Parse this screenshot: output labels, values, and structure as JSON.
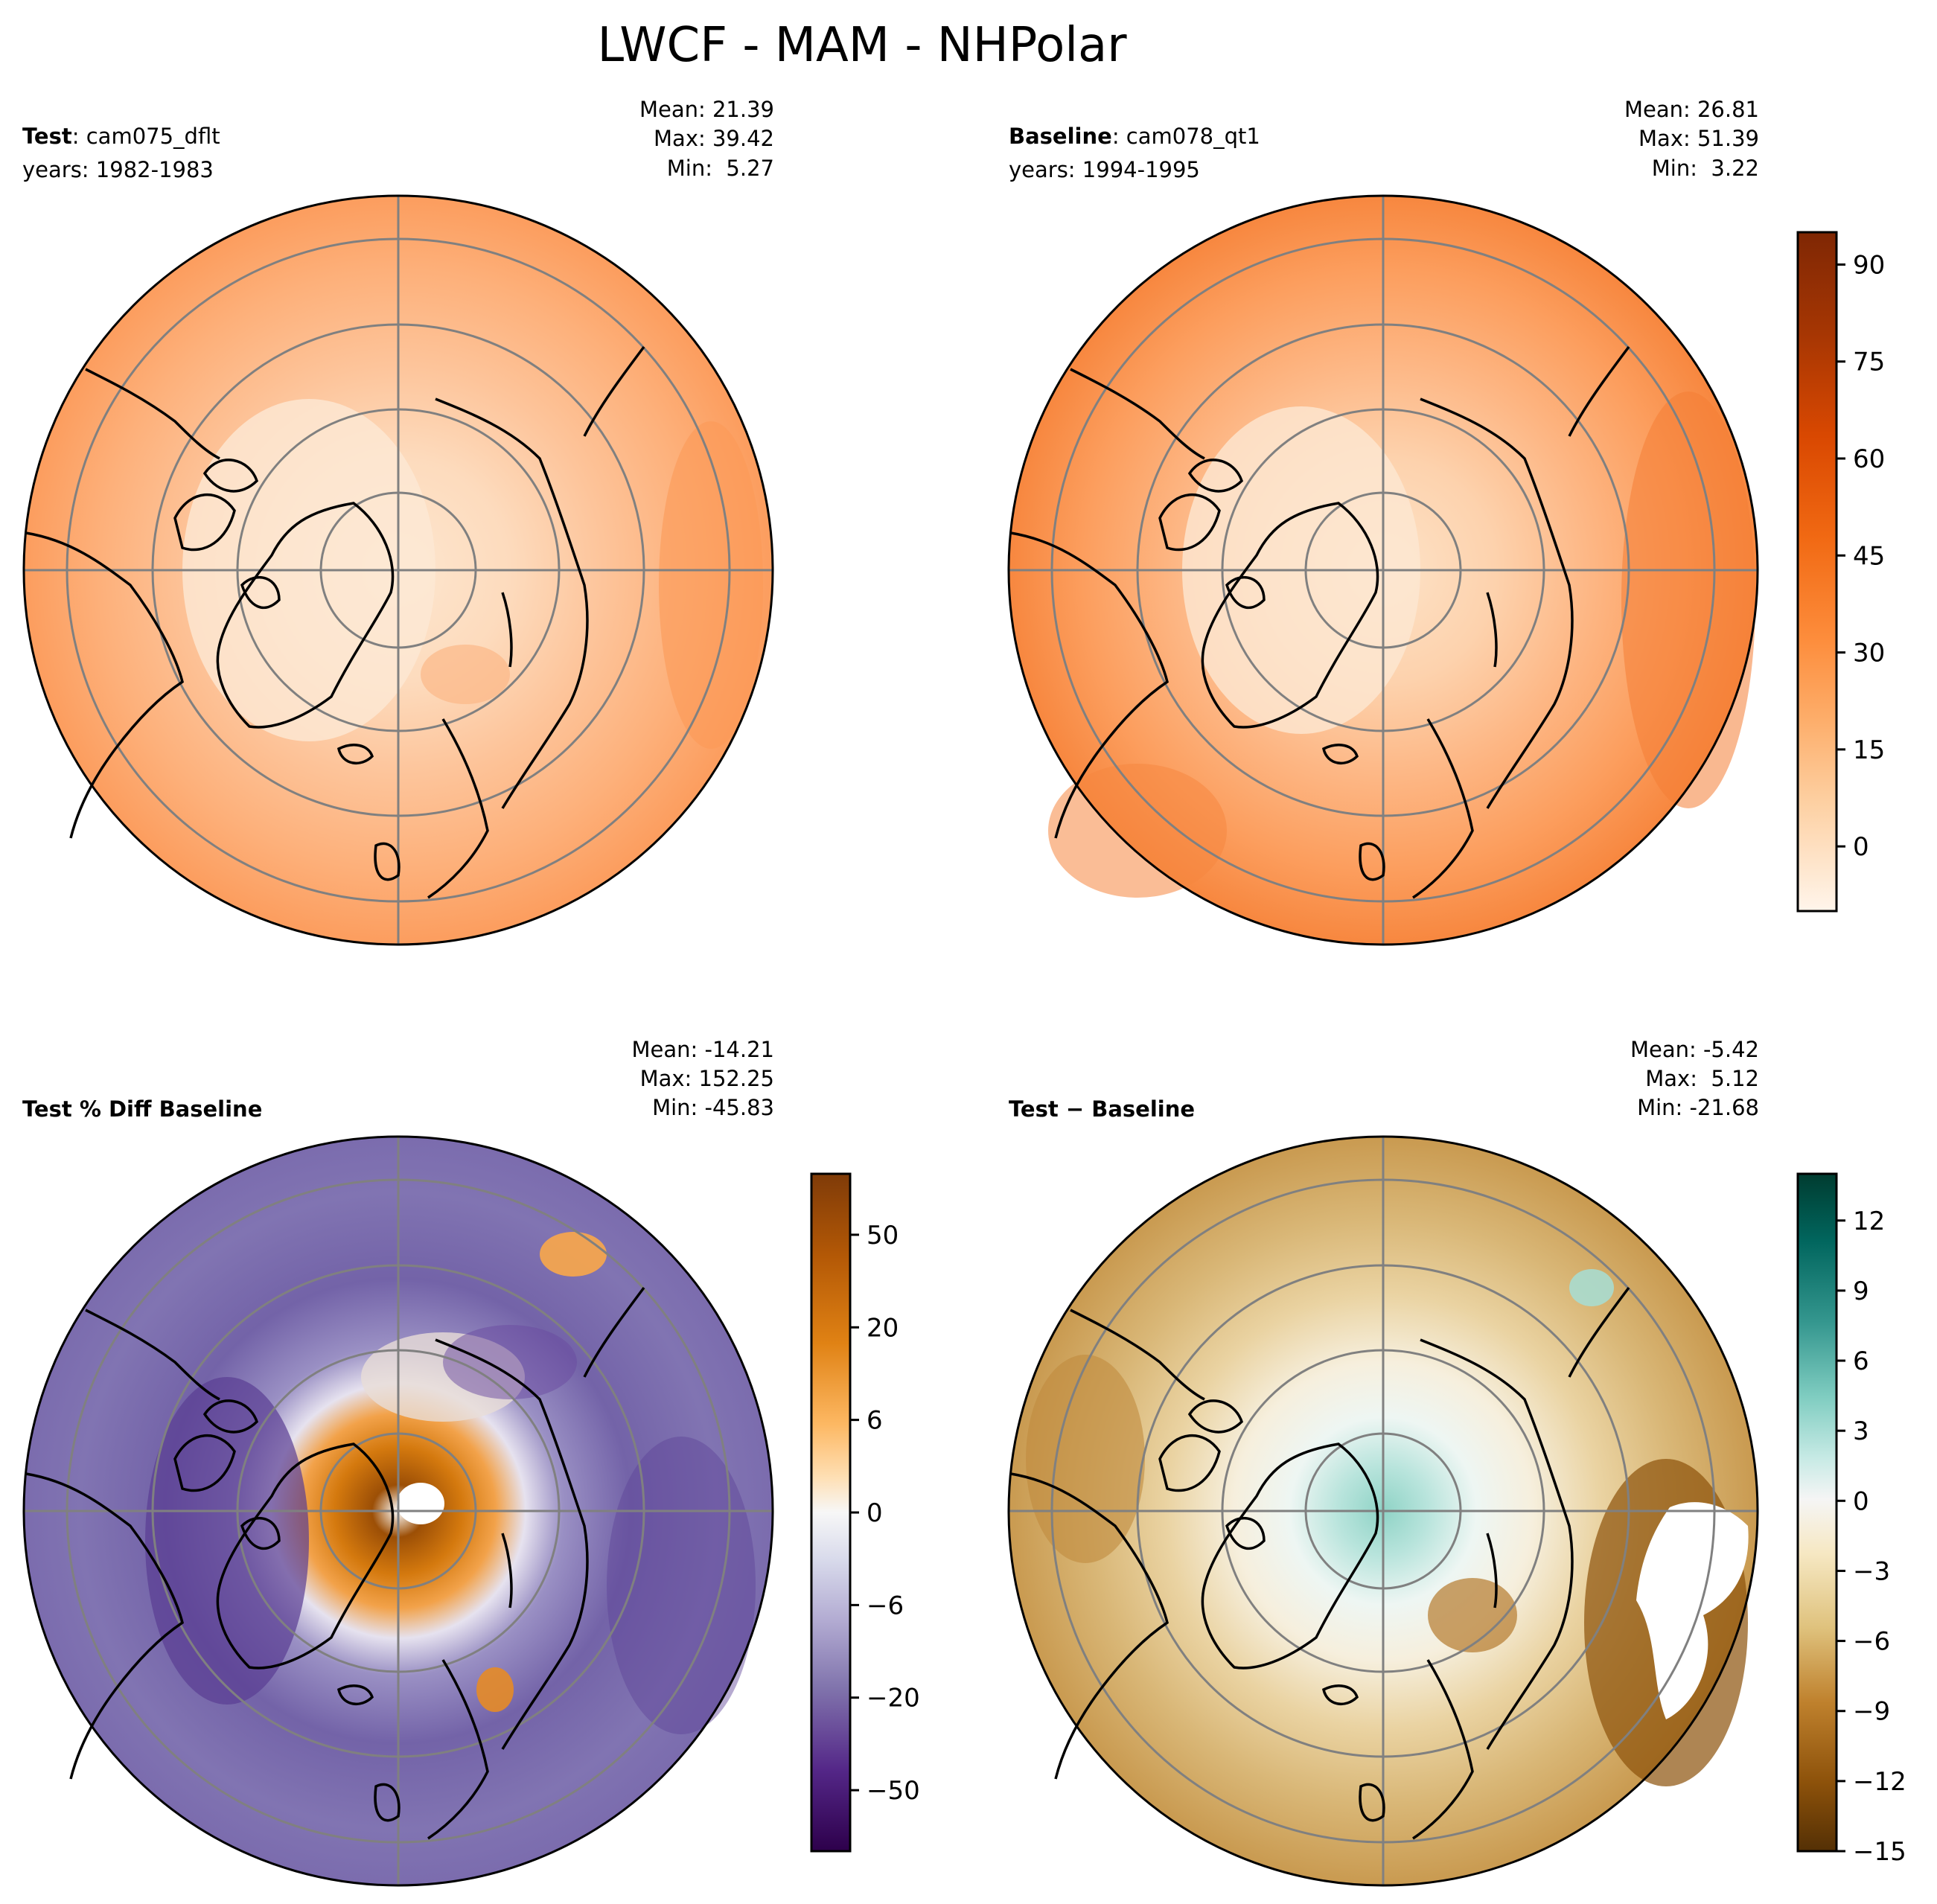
{
  "figure": {
    "title": "LWCF - MAM - NHPolar"
  },
  "panels": [
    {
      "id": "test",
      "label_bold": "Test",
      "label_rest": ": cam075_dflt",
      "years": "years: 1982-1983",
      "stats": {
        "mean": "Mean: 21.39",
        "max": "Max: 39.42",
        "min": "Min:  5.27"
      },
      "style": "orange-test",
      "has_colorbar": false
    },
    {
      "id": "baseline",
      "label_bold": "Baseline",
      "label_rest": ": cam078_qt1",
      "years": "years: 1994-1995",
      "stats": {
        "mean": "Mean: 26.81",
        "max": "Max: 51.39",
        "min": "Min:  3.22"
      },
      "style": "orange-base",
      "has_colorbar": true
    },
    {
      "id": "pctdiff",
      "label_bold": "Test % Diff Baseline",
      "label_rest": "",
      "years": "",
      "stats": {
        "mean": "Mean: -14.21",
        "max": "Max: 152.25",
        "min": "Min: -45.83"
      },
      "style": "purple-orange",
      "has_colorbar": true
    },
    {
      "id": "diff",
      "label_bold": "Test − Baseline",
      "label_rest": "",
      "years": "",
      "stats": {
        "mean": "Mean: -5.42",
        "max": "Max:  5.12",
        "min": "Min: -21.68"
      },
      "style": "brown-teal",
      "has_colorbar": true
    }
  ],
  "chart_data": [
    {
      "type": "heatmap",
      "title": "Test: cam075_dflt",
      "projection": "north polar stereographic",
      "mean": 21.39,
      "max": 39.42,
      "min": 5.27,
      "colorbar": null
    },
    {
      "type": "heatmap",
      "title": "Baseline: cam078_qt1",
      "projection": "north polar stereographic",
      "mean": 26.81,
      "max": 51.39,
      "min": 3.22,
      "colorbar": {
        "ticks": [
          "0",
          "15",
          "30",
          "45",
          "60",
          "75",
          "90"
        ],
        "tick_values": [
          0,
          15,
          30,
          45,
          60,
          75,
          90
        ],
        "range": [
          -10,
          95
        ],
        "colors": [
          "#fff5eb",
          "#fdd0a2",
          "#fdae6b",
          "#fd8d3c",
          "#f16913",
          "#d94801",
          "#8c2d04",
          "#7f2704"
        ]
      }
    },
    {
      "type": "heatmap",
      "title": "Test % Diff Baseline",
      "projection": "north polar stereographic",
      "mean": -14.21,
      "max": 152.25,
      "min": -45.83,
      "colorbar": {
        "ticks": [
          "50",
          "20",
          "6",
          "0",
          "−6",
          "−20",
          "−50"
        ],
        "tick_values": [
          50,
          20,
          6,
          0,
          -6,
          -20,
          -50
        ],
        "colors": [
          "#7f3b08",
          "#b35806",
          "#e08214",
          "#fdb863",
          "#fee0b6",
          "#f7f7f7",
          "#d8daeb",
          "#b2abd2",
          "#8073ac",
          "#542788",
          "#2d004b"
        ]
      }
    },
    {
      "type": "heatmap",
      "title": "Test − Baseline",
      "projection": "north polar stereographic",
      "mean": -5.42,
      "max": 5.12,
      "min": -21.68,
      "colorbar": {
        "ticks": [
          "12",
          "9",
          "6",
          "3",
          "0",
          "−3",
          "−6",
          "−9",
          "−12",
          "−15"
        ],
        "tick_values": [
          12,
          9,
          6,
          3,
          0,
          -3,
          -6,
          -9,
          -12,
          -15
        ],
        "range": [
          -15,
          14
        ],
        "colors": [
          "#003c30",
          "#01665e",
          "#35978f",
          "#80cdc1",
          "#c7eae5",
          "#f5f5f5",
          "#f6e8c3",
          "#dfc27d",
          "#bf812d",
          "#8c510a",
          "#543005"
        ]
      }
    }
  ]
}
